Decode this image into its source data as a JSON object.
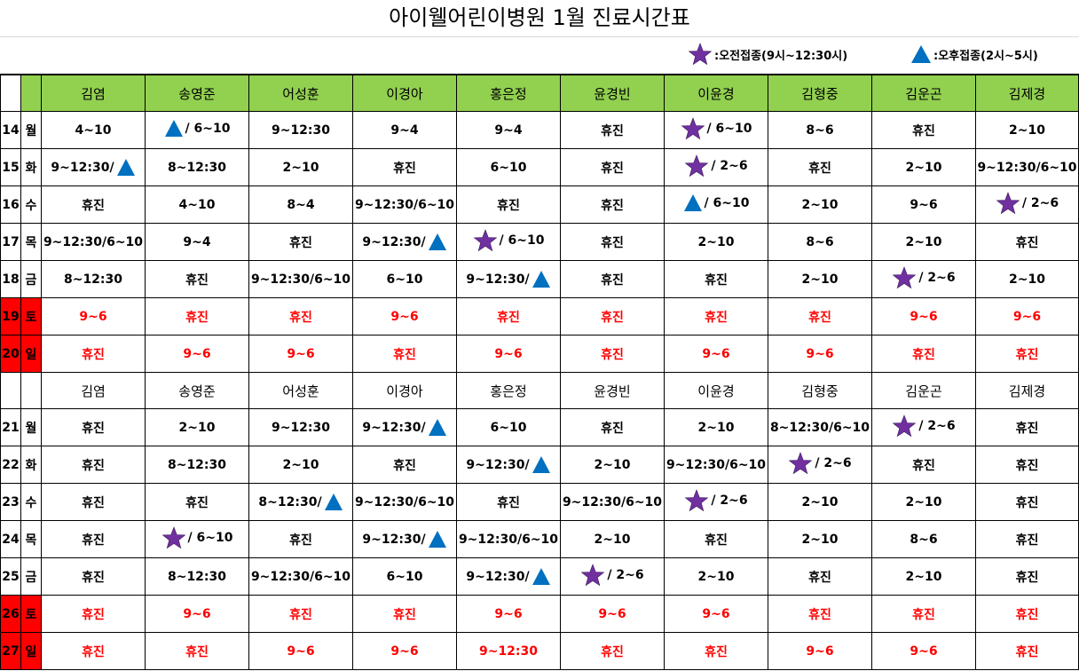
{
  "title": "아이웰어린이병원 1월 진료시간표",
  "legend": {
    "am_icon": "star-icon",
    "am_color": "#7030a0",
    "am_label": ":오전접종(9시~12:30시)",
    "pm_icon": "triangle-icon",
    "pm_color": "#0070c0",
    "pm_label": ":오후접종(2시~5시)"
  },
  "colors": {
    "header_green": "#92d050",
    "weekend_red": "#ff0000"
  },
  "doctors": [
    "김염",
    "송영준",
    "어성훈",
    "이경아",
    "홍은정",
    "윤경빈",
    "이윤경",
    "김형중",
    "김운곤",
    "김제경"
  ],
  "week1": [
    {
      "day": "14",
      "wd": "월",
      "weekend": false,
      "cells": [
        {
          "t": "4~10"
        },
        {
          "t": "/ 6~10",
          "pre": "tri"
        },
        {
          "t": "9~12:30"
        },
        {
          "t": "9~4"
        },
        {
          "t": "9~4"
        },
        {
          "t": "휴진"
        },
        {
          "t": "/ 6~10",
          "pre": "star"
        },
        {
          "t": "8~6"
        },
        {
          "t": "휴진"
        },
        {
          "t": "2~10"
        }
      ]
    },
    {
      "day": "15",
      "wd": "화",
      "weekend": false,
      "cells": [
        {
          "t": "9~12:30/",
          "post": "tri"
        },
        {
          "t": "8~12:30"
        },
        {
          "t": "2~10"
        },
        {
          "t": "휴진"
        },
        {
          "t": "6~10"
        },
        {
          "t": "휴진"
        },
        {
          "t": "/ 2~6",
          "pre": "star"
        },
        {
          "t": "휴진"
        },
        {
          "t": "2~10"
        },
        {
          "t": "9~12:30/6~10"
        }
      ]
    },
    {
      "day": "16",
      "wd": "수",
      "weekend": false,
      "cells": [
        {
          "t": "휴진"
        },
        {
          "t": "4~10"
        },
        {
          "t": "8~4"
        },
        {
          "t": "9~12:30/6~10"
        },
        {
          "t": "휴진"
        },
        {
          "t": "휴진"
        },
        {
          "t": "/ 6~10",
          "pre": "tri"
        },
        {
          "t": "2~10"
        },
        {
          "t": "9~6"
        },
        {
          "t": "/ 2~6",
          "pre": "star"
        }
      ]
    },
    {
      "day": "17",
      "wd": "목",
      "weekend": false,
      "cells": [
        {
          "t": "9~12:30/6~10"
        },
        {
          "t": "9~4"
        },
        {
          "t": "휴진"
        },
        {
          "t": "9~12:30/",
          "post": "tri"
        },
        {
          "t": "/ 6~10",
          "pre": "star"
        },
        {
          "t": "휴진"
        },
        {
          "t": "2~10"
        },
        {
          "t": "8~6"
        },
        {
          "t": "2~10"
        },
        {
          "t": "휴진"
        }
      ]
    },
    {
      "day": "18",
      "wd": "금",
      "weekend": false,
      "cells": [
        {
          "t": "8~12:30"
        },
        {
          "t": "휴진"
        },
        {
          "t": "9~12:30/6~10"
        },
        {
          "t": "6~10"
        },
        {
          "t": "9~12:30/",
          "post": "tri"
        },
        {
          "t": "휴진"
        },
        {
          "t": "휴진"
        },
        {
          "t": "2~10"
        },
        {
          "t": "/ 2~6",
          "pre": "star"
        },
        {
          "t": "2~10"
        }
      ]
    },
    {
      "day": "19",
      "wd": "토",
      "weekend": true,
      "cells": [
        {
          "t": "9~6"
        },
        {
          "t": "휴진"
        },
        {
          "t": "휴진"
        },
        {
          "t": "9~6"
        },
        {
          "t": "휴진"
        },
        {
          "t": "휴진"
        },
        {
          "t": "휴진"
        },
        {
          "t": "휴진"
        },
        {
          "t": "9~6"
        },
        {
          "t": "9~6"
        }
      ]
    },
    {
      "day": "20",
      "wd": "일",
      "weekend": true,
      "cells": [
        {
          "t": "휴진"
        },
        {
          "t": "9~6"
        },
        {
          "t": "9~6"
        },
        {
          "t": "휴진"
        },
        {
          "t": "9~6"
        },
        {
          "t": "휴진"
        },
        {
          "t": "9~6"
        },
        {
          "t": "9~6"
        },
        {
          "t": "휴진"
        },
        {
          "t": "휴진"
        }
      ]
    }
  ],
  "week2": [
    {
      "day": "21",
      "wd": "월",
      "weekend": false,
      "cells": [
        {
          "t": "휴진"
        },
        {
          "t": "2~10"
        },
        {
          "t": "9~12:30"
        },
        {
          "t": "9~12:30/",
          "post": "tri"
        },
        {
          "t": "6~10"
        },
        {
          "t": "휴진"
        },
        {
          "t": "2~10"
        },
        {
          "t": "8~12:30/6~10"
        },
        {
          "t": "/ 2~6",
          "pre": "star"
        },
        {
          "t": "휴진"
        }
      ]
    },
    {
      "day": "22",
      "wd": "화",
      "weekend": false,
      "cells": [
        {
          "t": "휴진"
        },
        {
          "t": "8~12:30"
        },
        {
          "t": "2~10"
        },
        {
          "t": "휴진"
        },
        {
          "t": "9~12:30/",
          "post": "tri"
        },
        {
          "t": "2~10"
        },
        {
          "t": "9~12:30/6~10"
        },
        {
          "t": "/ 2~6",
          "pre": "star"
        },
        {
          "t": "휴진"
        },
        {
          "t": "휴진"
        }
      ]
    },
    {
      "day": "23",
      "wd": "수",
      "weekend": false,
      "cells": [
        {
          "t": "휴진"
        },
        {
          "t": "휴진"
        },
        {
          "t": "8~12:30/",
          "post": "tri"
        },
        {
          "t": "9~12:30/6~10"
        },
        {
          "t": "휴진"
        },
        {
          "t": "9~12:30/6~10"
        },
        {
          "t": "/ 2~6",
          "pre": "star"
        },
        {
          "t": "2~10"
        },
        {
          "t": "2~10"
        },
        {
          "t": "휴진"
        }
      ]
    },
    {
      "day": "24",
      "wd": "목",
      "weekend": false,
      "cells": [
        {
          "t": "휴진"
        },
        {
          "t": "/ 6~10",
          "pre": "star"
        },
        {
          "t": "휴진"
        },
        {
          "t": "9~12:30/",
          "post": "tri"
        },
        {
          "t": "9~12:30/6~10"
        },
        {
          "t": "2~10"
        },
        {
          "t": "휴진"
        },
        {
          "t": "2~10"
        },
        {
          "t": "8~6"
        },
        {
          "t": "휴진"
        }
      ]
    },
    {
      "day": "25",
      "wd": "금",
      "weekend": false,
      "cells": [
        {
          "t": "휴진"
        },
        {
          "t": "8~12:30"
        },
        {
          "t": "9~12:30/6~10"
        },
        {
          "t": "6~10"
        },
        {
          "t": "9~12:30/",
          "post": "tri"
        },
        {
          "t": "/ 2~6",
          "pre": "star"
        },
        {
          "t": "2~10"
        },
        {
          "t": "휴진"
        },
        {
          "t": "2~10"
        },
        {
          "t": "휴진"
        }
      ]
    },
    {
      "day": "26",
      "wd": "토",
      "weekend": true,
      "cells": [
        {
          "t": "휴진"
        },
        {
          "t": "9~6"
        },
        {
          "t": "휴진"
        },
        {
          "t": "휴진"
        },
        {
          "t": "9~6"
        },
        {
          "t": "9~6"
        },
        {
          "t": "9~6"
        },
        {
          "t": "휴진"
        },
        {
          "t": "휴진"
        },
        {
          "t": "휴진"
        }
      ]
    },
    {
      "day": "27",
      "wd": "일",
      "weekend": true,
      "cells": [
        {
          "t": "휴진"
        },
        {
          "t": "휴진"
        },
        {
          "t": "9~6"
        },
        {
          "t": "9~6"
        },
        {
          "t": "9~12:30"
        },
        {
          "t": "휴진"
        },
        {
          "t": "휴진"
        },
        {
          "t": "9~6"
        },
        {
          "t": "9~6"
        },
        {
          "t": "휴진"
        }
      ]
    }
  ]
}
